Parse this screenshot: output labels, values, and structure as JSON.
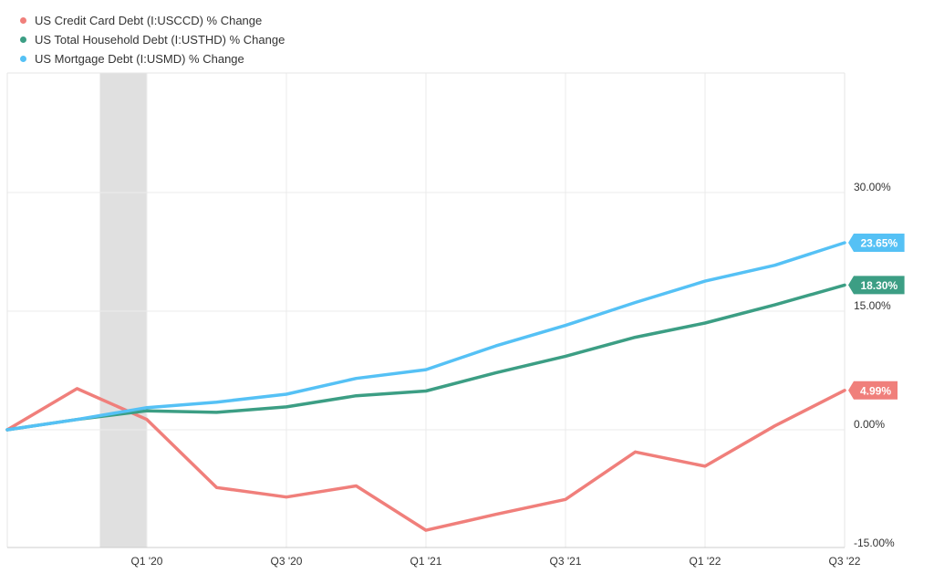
{
  "chart_data": {
    "type": "line",
    "legend_position": "top-left",
    "grid": true,
    "x": [
      "Q3 '19",
      "Q4 '19",
      "Q1 '20",
      "Q2 '20",
      "Q3 '20",
      "Q4 '20",
      "Q1 '21",
      "Q2 '21",
      "Q3 '21",
      "Q4 '21",
      "Q1 '22",
      "Q2 '22",
      "Q3 '22"
    ],
    "x_tick_labels": [
      "Q1 '20",
      "Q3 '20",
      "Q1 '21",
      "Q3 '21",
      "Q1 '22",
      "Q3 '22"
    ],
    "y_tick_labels": [
      "30.00%",
      "15.00%",
      "0.00%",
      "-15.00%"
    ],
    "y_ticks": [
      30,
      15,
      0,
      -15
    ],
    "ylim": [
      -15,
      45
    ],
    "shaded_region": {
      "from": "Q4 '19",
      "to": "Q1 '20"
    },
    "series": [
      {
        "name": "US Credit Card Debt (I:USCCD) % Change",
        "color": "#f07f7b",
        "values": [
          0,
          5.2,
          1.3,
          -7.3,
          -8.5,
          -7.1,
          -12.7,
          -10.7,
          -8.8,
          -2.8,
          -4.6,
          0.5,
          4.99
        ],
        "end_label": "4.99%"
      },
      {
        "name": "US Total Household Debt (I:USTHD) % Change",
        "color": "#3c9e84",
        "values": [
          0,
          1.3,
          2.4,
          2.2,
          2.9,
          4.3,
          4.9,
          7.2,
          9.3,
          11.7,
          13.5,
          15.8,
          18.3
        ],
        "end_label": "18.30%"
      },
      {
        "name": "US Mortgage Debt (I:USMD) % Change",
        "color": "#55c1f5",
        "values": [
          0,
          1.3,
          2.8,
          3.5,
          4.5,
          6.5,
          7.6,
          10.6,
          13.2,
          16.1,
          18.8,
          20.8,
          23.65
        ],
        "end_label": "23.65%"
      }
    ]
  }
}
